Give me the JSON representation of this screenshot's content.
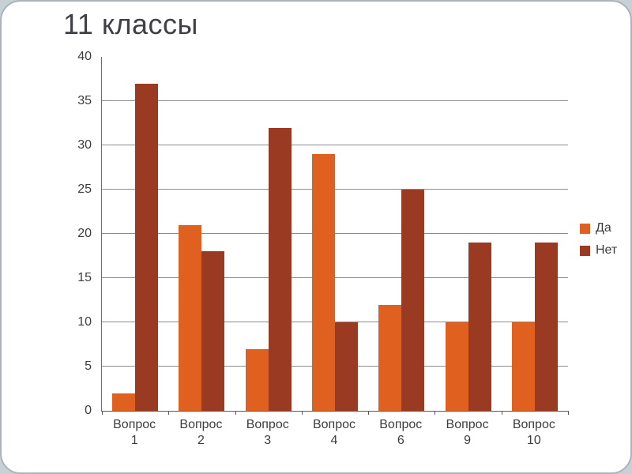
{
  "chart_data": {
    "type": "bar",
    "title": "11 классы",
    "categories": [
      "Вопрос 1",
      "Вопрос 2",
      "Вопрос 3",
      "Вопрос 4",
      "Вопрос 6",
      "Вопрос 9",
      "Вопрос 10"
    ],
    "series": [
      {
        "name": "Да",
        "color": "#E0611F",
        "values": [
          2,
          21,
          7,
          29,
          12,
          10,
          10
        ]
      },
      {
        "name": "Нет",
        "color": "#9B3A22",
        "values": [
          37,
          18,
          32,
          10,
          25,
          19,
          19
        ]
      }
    ],
    "ylim": [
      0,
      40
    ],
    "ytick_step": 5,
    "grid": true,
    "legend_position": "right",
    "legend_entries": [
      "Да",
      "Нет"
    ]
  }
}
